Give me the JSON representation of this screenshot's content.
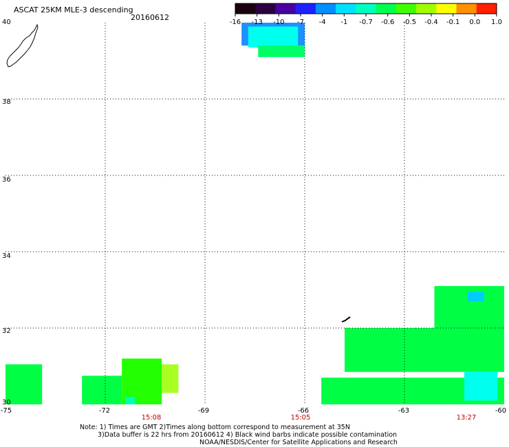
{
  "header": {
    "title": "ASCAT 25KM MLE-3 descending",
    "date": "20160612"
  },
  "colorbar": {
    "labels": [
      "-16",
      "-13",
      "-10",
      "-7",
      "-4",
      "-1",
      "-0.7",
      "-0.6",
      "-0.5",
      "-0.4",
      "-0.1",
      "0.0",
      "1.0"
    ],
    "colors": [
      "#1a0010",
      "#2a0040",
      "#4a00a0",
      "#2020ff",
      "#0090ff",
      "#00e0ff",
      "#00ffc0",
      "#00ff50",
      "#40ff00",
      "#a0ff00",
      "#ffff00",
      "#ff9000",
      "#ff2000"
    ]
  },
  "map": {
    "lon_ticks": [
      "-75",
      "-72",
      "-69",
      "-66",
      "-63",
      "-60"
    ],
    "lat_ticks": [
      "40",
      "38",
      "36",
      "34",
      "32",
      "30"
    ],
    "lon_range": [
      -75,
      -60
    ],
    "lat_range": [
      30,
      40
    ],
    "grid": true,
    "pass_times": [
      {
        "time": "15:08",
        "lon": -71.3
      },
      {
        "time": "15:05",
        "lon": -66.0
      },
      {
        "time": "13:27",
        "lon": -61.3
      }
    ]
  },
  "chart_data": {
    "type": "heatmap",
    "title": "ASCAT 25KM MLE-3 descending",
    "xlabel": "",
    "ylabel": "",
    "xlim": [
      -75,
      -60
    ],
    "ylim": [
      30,
      40
    ],
    "colorbar_labels": [
      "-16",
      "-13",
      "-10",
      "-7",
      "-4",
      "-1",
      "-0.7",
      "-0.6",
      "-0.5",
      "-0.4",
      "-0.1",
      "0.0",
      "1.0"
    ],
    "cells": [
      {
        "lon": [
          -67.9,
          -66.0
        ],
        "lat": [
          39.4,
          40.0
        ],
        "value": -4,
        "color": "#1e90ff"
      },
      {
        "lon": [
          -67.7,
          -66.2
        ],
        "lat": [
          39.35,
          39.9
        ],
        "value": -1,
        "color": "#00ffee"
      },
      {
        "lon": [
          -67.4,
          -66.0
        ],
        "lat": [
          39.1,
          39.4
        ],
        "value": -0.6,
        "color": "#00ff66"
      },
      {
        "lon": [
          -75.0,
          -74.4
        ],
        "lat": [
          30.0,
          31.05
        ],
        "value": -0.6,
        "color": "#00ff44"
      },
      {
        "lon": [
          -74.4,
          -73.9
        ],
        "lat": [
          30.0,
          31.05
        ],
        "value": -0.6,
        "color": "#00ff44"
      },
      {
        "lon": [
          -72.7,
          -71.5
        ],
        "lat": [
          30.0,
          30.75
        ],
        "value": -0.6,
        "color": "#00ff44"
      },
      {
        "lon": [
          -71.5,
          -70.3
        ],
        "lat": [
          30.0,
          31.2
        ],
        "value": -0.5,
        "color": "#22ff00"
      },
      {
        "lon": [
          -70.3,
          -69.8
        ],
        "lat": [
          30.3,
          31.05
        ],
        "value": -0.4,
        "color": "#aaff22"
      },
      {
        "lon": [
          -71.4,
          -71.1
        ],
        "lat": [
          30.0,
          30.2
        ],
        "value": -0.7,
        "color": "#00ffb0"
      },
      {
        "lon": [
          -64.8,
          -60.0
        ],
        "lat": [
          30.85,
          32.0
        ],
        "value": -0.6,
        "color": "#00ff44"
      },
      {
        "lon": [
          -65.5,
          -60.0
        ],
        "lat": [
          30.0,
          30.7
        ],
        "value": -0.6,
        "color": "#00ff44"
      },
      {
        "lon": [
          -62.1,
          -60.0
        ],
        "lat": [
          32.0,
          33.1
        ],
        "value": -0.6,
        "color": "#00ff44"
      },
      {
        "lon": [
          -61.1,
          -60.6
        ],
        "lat": [
          32.7,
          32.95
        ],
        "value": -1,
        "color": "#00ccff"
      },
      {
        "lon": [
          -61.2,
          -60.2
        ],
        "lat": [
          30.1,
          30.85
        ],
        "value": -1,
        "color": "#00ffee"
      }
    ]
  },
  "footer": {
    "note_line1": "Note: 1) Times are GMT 2)Times along bottom correspond to measurement at 35N",
    "note_line2": "3)Data buffer is 22 hrs from 20160612 4) Black wind barbs indicate possible contamination",
    "credit": "NOAA/NESDIS/Center for Satellite Applications and Research"
  }
}
